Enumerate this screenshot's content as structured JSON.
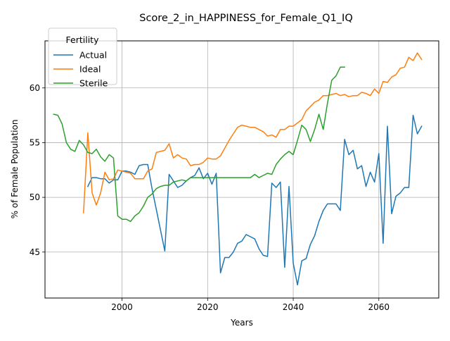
{
  "chart_data": {
    "type": "line",
    "title": "Score_2_in_HAPPINESS_for_Female_Q1_IQ",
    "xlabel": "Years",
    "ylabel": "% of Female Population",
    "xlim": [
      1982,
      2074
    ],
    "ylim": [
      40.8,
      64.3
    ],
    "xticks": [
      2000,
      2020,
      2040,
      2060
    ],
    "yticks": [
      45,
      50,
      55,
      60
    ],
    "grid": true,
    "legend": {
      "title": "Fertility",
      "position": "top-left"
    },
    "series": [
      {
        "name": "Actual",
        "color": "#1f77b4",
        "x": [
          1992,
          1993,
          1994,
          1995,
          1996,
          1997,
          1998,
          1999,
          2000,
          2001,
          2002,
          2003,
          2004,
          2005,
          2006,
          2007,
          2008,
          2009,
          2010,
          2011,
          2012,
          2013,
          2014,
          2015,
          2016,
          2017,
          2018,
          2019,
          2020,
          2021,
          2022,
          2023,
          2024,
          2025,
          2026,
          2027,
          2028,
          2029,
          2030,
          2031,
          2032,
          2033,
          2034,
          2035,
          2036,
          2037,
          2038,
          2039,
          2040,
          2041,
          2042,
          2043,
          2044,
          2045,
          2046,
          2047,
          2048,
          2049,
          2050,
          2051,
          2052,
          2053,
          2054,
          2055,
          2056,
          2057,
          2058,
          2059,
          2060,
          2061,
          2062,
          2063,
          2064,
          2065,
          2066,
          2067,
          2068,
          2069,
          2070
        ],
        "y": [
          51.0,
          51.8,
          51.8,
          51.7,
          51.7,
          51.3,
          51.6,
          51.6,
          52.4,
          52.4,
          52.3,
          52.1,
          52.9,
          53.0,
          53.0,
          50.8,
          48.9,
          47.0,
          45.1,
          52.1,
          51.5,
          50.9,
          51.1,
          51.5,
          51.8,
          52.0,
          52.7,
          51.7,
          52.2,
          51.2,
          52.2,
          43.1,
          44.5,
          44.5,
          45.0,
          45.8,
          46.0,
          46.6,
          46.4,
          46.2,
          45.3,
          44.7,
          44.6,
          51.3,
          50.9,
          51.4,
          43.6,
          51.0,
          44.0,
          42.0,
          44.2,
          44.4,
          45.7,
          46.5,
          47.8,
          48.8,
          49.4,
          49.4,
          49.4,
          48.8,
          55.3,
          53.9,
          54.3,
          52.6,
          52.9,
          51.0,
          52.3,
          51.4,
          54.0,
          45.8,
          56.5,
          48.5,
          50.1,
          50.4,
          50.9,
          50.9,
          57.5,
          55.8,
          56.5
        ]
      },
      {
        "name": "Ideal",
        "color": "#ff7f0e",
        "x": [
          1991,
          1992,
          1993,
          1994,
          1995,
          1996,
          1997,
          1998,
          1999,
          2000,
          2001,
          2002,
          2003,
          2004,
          2005,
          2006,
          2007,
          2008,
          2009,
          2010,
          2011,
          2012,
          2013,
          2014,
          2015,
          2016,
          2017,
          2018,
          2019,
          2020,
          2021,
          2022,
          2023,
          2024,
          2025,
          2026,
          2027,
          2028,
          2029,
          2030,
          2031,
          2032,
          2033,
          2034,
          2035,
          2036,
          2037,
          2038,
          2039,
          2040,
          2041,
          2042,
          2043,
          2044,
          2045,
          2046,
          2047,
          2048,
          2049,
          2050,
          2051,
          2052,
          2053,
          2054,
          2055,
          2056,
          2057,
          2058,
          2059,
          2060,
          2061,
          2062,
          2063,
          2064,
          2065,
          2066,
          2067,
          2068,
          2069,
          2070
        ],
        "y": [
          48.6,
          55.9,
          50.4,
          49.3,
          50.4,
          52.3,
          51.6,
          51.7,
          52.5,
          52.4,
          52.3,
          52.2,
          51.7,
          51.7,
          51.7,
          52.4,
          52.6,
          54.1,
          54.2,
          54.3,
          54.9,
          53.6,
          53.9,
          53.6,
          53.5,
          52.9,
          53.0,
          53.0,
          53.2,
          53.6,
          53.5,
          53.5,
          53.8,
          54.5,
          55.2,
          55.8,
          56.4,
          56.6,
          56.5,
          56.4,
          56.4,
          56.2,
          56.0,
          55.6,
          55.7,
          55.5,
          56.2,
          56.2,
          56.5,
          56.5,
          56.8,
          57.1,
          57.9,
          58.3,
          58.7,
          58.9,
          59.3,
          59.3,
          59.4,
          59.5,
          59.3,
          59.4,
          59.2,
          59.3,
          59.3,
          59.6,
          59.5,
          59.3,
          59.9,
          59.5,
          60.6,
          60.5,
          61.0,
          61.2,
          61.8,
          61.9,
          62.8,
          62.5,
          63.2,
          62.6
        ]
      },
      {
        "name": "Sterile",
        "color": "#2ca02c",
        "x": [
          1984,
          1985,
          1986,
          1987,
          1988,
          1989,
          1990,
          1991,
          1992,
          1993,
          1994,
          1995,
          1996,
          1997,
          1998,
          1999,
          2000,
          2001,
          2002,
          2003,
          2004,
          2005,
          2006,
          2007,
          2008,
          2009,
          2010,
          2011,
          2012,
          2013,
          2014,
          2015,
          2016,
          2017,
          2018,
          2019,
          2020,
          2021,
          2022,
          2023,
          2024,
          2025,
          2026,
          2027,
          2028,
          2029,
          2030,
          2031,
          2032,
          2033,
          2034,
          2035,
          2036,
          2037,
          2038,
          2039,
          2040,
          2041,
          2042,
          2043,
          2044,
          2045,
          2046,
          2047,
          2048,
          2049,
          2050,
          2051,
          2052
        ],
        "y": [
          57.6,
          57.5,
          56.7,
          55.0,
          54.4,
          54.2,
          55.2,
          54.8,
          54.1,
          54.0,
          54.4,
          53.7,
          53.3,
          53.9,
          53.6,
          48.3,
          48.0,
          48.0,
          47.8,
          48.3,
          48.6,
          49.2,
          50.0,
          50.3,
          50.8,
          51.0,
          51.1,
          51.1,
          51.4,
          51.5,
          51.6,
          51.5,
          51.8,
          51.8,
          51.8,
          51.8,
          51.8,
          51.8,
          51.8,
          51.8,
          51.8,
          51.8,
          51.8,
          51.8,
          51.8,
          51.8,
          51.8,
          52.1,
          51.8,
          52.0,
          52.2,
          52.1,
          53.0,
          53.5,
          53.9,
          54.2,
          53.9,
          55.2,
          56.6,
          56.2,
          55.1,
          56.2,
          57.6,
          56.2,
          58.6,
          60.7,
          61.1,
          61.9,
          61.9
        ]
      }
    ]
  }
}
